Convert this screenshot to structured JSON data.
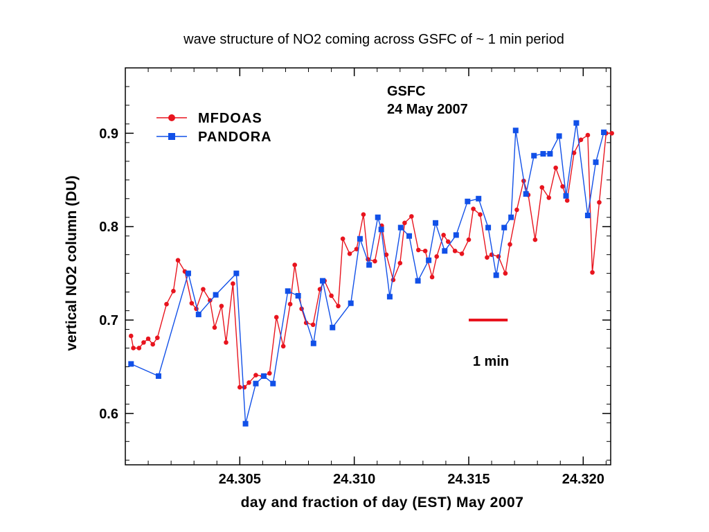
{
  "chart_data": {
    "type": "line",
    "title": "wave structure of NO2 coming across GSFC of ~ 1 min period",
    "xlabel": "day and fraction of day (EST) May 2007",
    "ylabel": "vertical NO2 column (DU)",
    "xlim": [
      24.3,
      24.3212
    ],
    "ylim": [
      0.545,
      0.97
    ],
    "x_ticks": [
      24.305,
      24.31,
      24.315,
      24.32
    ],
    "x_tick_labels": [
      "24.305",
      "24.310",
      "24.315",
      "24.320"
    ],
    "y_ticks": [
      0.6,
      0.7,
      0.8,
      0.9
    ],
    "y_tick_labels": [
      "0.6",
      "0.7",
      "0.8",
      "0.9"
    ],
    "grid": false,
    "legend_position": "top-left",
    "annotations": {
      "site": "GSFC",
      "date": "24 May 2007",
      "scale_bar_label": "1 min",
      "scale_bar_x": [
        24.315,
        24.3167
      ],
      "scale_bar_y": 0.7,
      "scale_bar_color": "#e8141e"
    },
    "series": [
      {
        "name": "MFDOAS",
        "color": "#e8141e",
        "marker": "circle",
        "x": [
          24.30025,
          24.30035,
          24.3006,
          24.3008,
          24.301,
          24.3012,
          24.3014,
          24.3018,
          24.3021,
          24.3023,
          24.3026,
          24.3029,
          24.3031,
          24.3034,
          24.3037,
          24.3039,
          24.3042,
          24.3044,
          24.3047,
          24.305,
          24.3052,
          24.3054,
          24.3057,
          24.306,
          24.3063,
          24.3066,
          24.3069,
          24.3072,
          24.3074,
          24.3077,
          24.3079,
          24.3082,
          24.3085,
          24.3087,
          24.309,
          24.3093,
          24.3095,
          24.3098,
          24.3101,
          24.3104,
          24.3106,
          24.3109,
          24.3112,
          24.3114,
          24.3117,
          24.312,
          24.3122,
          24.3125,
          24.3128,
          24.3131,
          24.3134,
          24.3136,
          24.3139,
          24.3141,
          24.3144,
          24.3147,
          24.315,
          24.3152,
          24.3155,
          24.3158,
          24.316,
          24.3163,
          24.3166,
          24.3168,
          24.3171,
          24.3174,
          24.3176,
          24.3179,
          24.3182,
          24.3185,
          24.3188,
          24.3191,
          24.3193,
          24.3196,
          24.3199,
          24.3202,
          24.3204,
          24.3207,
          24.321,
          24.32125
        ],
        "values": [
          0.683,
          0.67,
          0.67,
          0.676,
          0.68,
          0.674,
          0.681,
          0.717,
          0.731,
          0.764,
          0.752,
          0.718,
          0.712,
          0.733,
          0.721,
          0.692,
          0.715,
          0.676,
          0.739,
          0.628,
          0.628,
          0.633,
          0.641,
          0.64,
          0.643,
          0.703,
          0.672,
          0.717,
          0.759,
          0.712,
          0.697,
          0.695,
          0.733,
          0.742,
          0.726,
          0.715,
          0.787,
          0.771,
          0.776,
          0.813,
          0.765,
          0.763,
          0.801,
          0.77,
          0.743,
          0.761,
          0.804,
          0.811,
          0.775,
          0.774,
          0.746,
          0.768,
          0.791,
          0.784,
          0.774,
          0.771,
          0.786,
          0.819,
          0.813,
          0.767,
          0.77,
          0.768,
          0.75,
          0.781,
          0.818,
          0.849,
          0.834,
          0.786,
          0.842,
          0.831,
          0.863,
          0.843,
          0.828,
          0.879,
          0.893,
          0.898,
          0.751,
          0.826,
          0.9,
          0.9
        ]
      },
      {
        "name": "PANDORA",
        "color": "#1150e8",
        "marker": "square",
        "x": [
          24.30025,
          24.30145,
          24.30275,
          24.3032,
          24.30395,
          24.30485,
          24.30525,
          24.3057,
          24.30605,
          24.30645,
          24.3071,
          24.30755,
          24.30822,
          24.30862,
          24.30905,
          24.30985,
          24.31025,
          24.31065,
          24.31103,
          24.31118,
          24.31155,
          24.31203,
          24.3124,
          24.31278,
          24.31325,
          24.31355,
          24.31395,
          24.31445,
          24.31495,
          24.31543,
          24.31585,
          24.3162,
          24.31655,
          24.31685,
          24.31705,
          24.3175,
          24.31785,
          24.31825,
          24.31855,
          24.31895,
          24.31925,
          24.3197,
          24.3202,
          24.32055,
          24.3209
        ],
        "values": [
          0.653,
          0.64,
          0.75,
          0.706,
          0.727,
          0.75,
          0.589,
          0.632,
          0.64,
          0.632,
          0.731,
          0.726,
          0.675,
          0.742,
          0.692,
          0.718,
          0.787,
          0.759,
          0.81,
          0.797,
          0.725,
          0.799,
          0.79,
          0.742,
          0.764,
          0.804,
          0.774,
          0.791,
          0.827,
          0.83,
          0.799,
          0.748,
          0.799,
          0.81,
          0.903,
          0.835,
          0.876,
          0.878,
          0.878,
          0.897,
          0.833,
          0.911,
          0.812,
          0.869,
          0.901
        ]
      }
    ]
  }
}
